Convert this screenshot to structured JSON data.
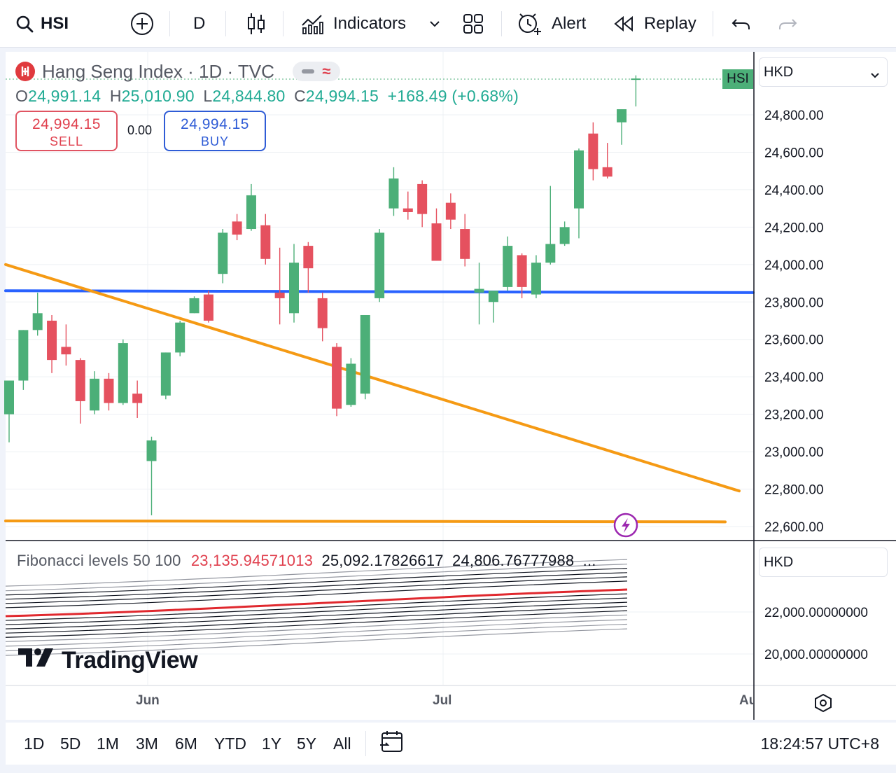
{
  "toolbar": {
    "symbol": "HSI",
    "interval": "D",
    "indicators_label": "Indicators",
    "alert_label": "Alert",
    "replay_label": "Replay"
  },
  "legend": {
    "title": "Hang Seng Index · 1D · TVC",
    "open_key": "O",
    "open": "24,991.14",
    "high_key": "H",
    "high": "25,010.90",
    "low_key": "L",
    "low": "24,844.80",
    "close_key": "C",
    "close": "24,994.15",
    "change": "+168.49 (+0.68%)"
  },
  "trade": {
    "sell_price": "24,994.15",
    "sell_label": "SELL",
    "spread": "0.00",
    "buy_price": "24,994.15",
    "buy_label": "BUY"
  },
  "price_axis": {
    "currency": "HKD",
    "symbol_tag": "HSI",
    "ticks": [
      "24,800.00",
      "24,600.00",
      "24,400.00",
      "24,200.00",
      "24,000.00",
      "23,800.00",
      "23,600.00",
      "23,400.00",
      "23,200.00",
      "23,000.00",
      "22,800.00",
      "22,600.00"
    ]
  },
  "fib_pane": {
    "name": "Fibonacci levels 50 100",
    "value_1": "23,135.94571013",
    "value_2": "25,092.17826617",
    "value_3": "24,806.76777988",
    "more": "...",
    "currency": "HKD",
    "ticks": [
      "22,000.00000000",
      "20,000.00000000"
    ]
  },
  "time_axis": {
    "labels": [
      "Jun",
      "Jul",
      "Au"
    ]
  },
  "brand": "TradingView",
  "bottom": {
    "ranges": [
      "1D",
      "5D",
      "1M",
      "3M",
      "6M",
      "YTD",
      "1Y",
      "5Y",
      "All"
    ],
    "clock": "18:24:57 UTC+8"
  },
  "colors": {
    "up": "#4caf78",
    "down": "#e5515f",
    "blue_line": "#2962ff",
    "orange_line": "#f59a14"
  },
  "chart_data": {
    "type": "candlestick",
    "title": "Hang Seng Index · 1D · TVC",
    "ylim": [
      22550,
      25150
    ],
    "candles": [
      {
        "o": 23200,
        "h": 23360,
        "l": 23050,
        "c": 23380
      },
      {
        "o": 23380,
        "h": 23650,
        "l": 23330,
        "c": 23650
      },
      {
        "o": 23650,
        "h": 23850,
        "l": 23620,
        "c": 23740
      },
      {
        "o": 23700,
        "h": 23730,
        "l": 23420,
        "c": 23490
      },
      {
        "o": 23560,
        "h": 23680,
        "l": 23460,
        "c": 23520
      },
      {
        "o": 23490,
        "h": 23500,
        "l": 23150,
        "c": 23270
      },
      {
        "o": 23220,
        "h": 23430,
        "l": 23200,
        "c": 23390
      },
      {
        "o": 23390,
        "h": 23420,
        "l": 23220,
        "c": 23260
      },
      {
        "o": 23260,
        "h": 23600,
        "l": 23250,
        "c": 23580
      },
      {
        "o": 23310,
        "h": 23380,
        "l": 23180,
        "c": 23260
      },
      {
        "o": 22950,
        "h": 23080,
        "l": 22660,
        "c": 23060
      },
      {
        "o": 23300,
        "h": 23530,
        "l": 23280,
        "c": 23530
      },
      {
        "o": 23530,
        "h": 23700,
        "l": 23510,
        "c": 23690
      },
      {
        "o": 23740,
        "h": 23830,
        "l": 23740,
        "c": 23820
      },
      {
        "o": 23840,
        "h": 23860,
        "l": 23690,
        "c": 23700
      },
      {
        "o": 23950,
        "h": 24190,
        "l": 23900,
        "c": 24170
      },
      {
        "o": 24230,
        "h": 24270,
        "l": 24130,
        "c": 24160
      },
      {
        "o": 24190,
        "h": 24430,
        "l": 24180,
        "c": 24370
      },
      {
        "o": 24210,
        "h": 24270,
        "l": 24000,
        "c": 24030
      },
      {
        "o": 23850,
        "h": 24090,
        "l": 23680,
        "c": 23820
      },
      {
        "o": 23740,
        "h": 24110,
        "l": 23690,
        "c": 24010
      },
      {
        "o": 24100,
        "h": 24120,
        "l": 23850,
        "c": 23980
      },
      {
        "o": 23820,
        "h": 23850,
        "l": 23590,
        "c": 23660
      },
      {
        "o": 23560,
        "h": 23580,
        "l": 23190,
        "c": 23230
      },
      {
        "o": 23250,
        "h": 23500,
        "l": 23240,
        "c": 23470
      },
      {
        "o": 23310,
        "h": 23720,
        "l": 23280,
        "c": 23730
      },
      {
        "o": 23820,
        "h": 24190,
        "l": 23800,
        "c": 24170
      },
      {
        "o": 24300,
        "h": 24520,
        "l": 24260,
        "c": 24460
      },
      {
        "o": 24300,
        "h": 24390,
        "l": 24240,
        "c": 24280
      },
      {
        "o": 24430,
        "h": 24450,
        "l": 24200,
        "c": 24270
      },
      {
        "o": 24220,
        "h": 24300,
        "l": 24020,
        "c": 24020
      },
      {
        "o": 24330,
        "h": 24380,
        "l": 24190,
        "c": 24240
      },
      {
        "o": 24190,
        "h": 24270,
        "l": 23990,
        "c": 24030
      },
      {
        "o": 23850,
        "h": 24010,
        "l": 23680,
        "c": 23870
      },
      {
        "o": 23800,
        "h": 23850,
        "l": 23690,
        "c": 23860
      },
      {
        "o": 23880,
        "h": 24150,
        "l": 23860,
        "c": 24100
      },
      {
        "o": 24050,
        "h": 24060,
        "l": 23820,
        "c": 23880
      },
      {
        "o": 23840,
        "h": 24050,
        "l": 23820,
        "c": 24010
      },
      {
        "o": 24010,
        "h": 24420,
        "l": 24000,
        "c": 24110
      },
      {
        "o": 24110,
        "h": 24230,
        "l": 24100,
        "c": 24200
      },
      {
        "o": 24300,
        "h": 24620,
        "l": 24140,
        "c": 24610
      },
      {
        "o": 24700,
        "h": 24760,
        "l": 24450,
        "c": 24510
      },
      {
        "o": 24520,
        "h": 24650,
        "l": 24460,
        "c": 24470
      },
      {
        "o": 24760,
        "h": 24830,
        "l": 24640,
        "c": 24830
      },
      {
        "o": 24991.14,
        "h": 25010.9,
        "l": 24844.8,
        "c": 24994.15
      }
    ],
    "lines": [
      {
        "name": "",
        "color": "#2962ff",
        "y_start": 23860,
        "y_end": 23850
      },
      {
        "name": "",
        "color": "#f59a14",
        "y_start": 24000,
        "y_end": 22790
      },
      {
        "name": "",
        "color": "#f59a14",
        "y_start": 22630,
        "y_end": 22625
      }
    ],
    "x_labels": [
      "Jun",
      "Jul",
      "Au"
    ],
    "grid": true
  }
}
